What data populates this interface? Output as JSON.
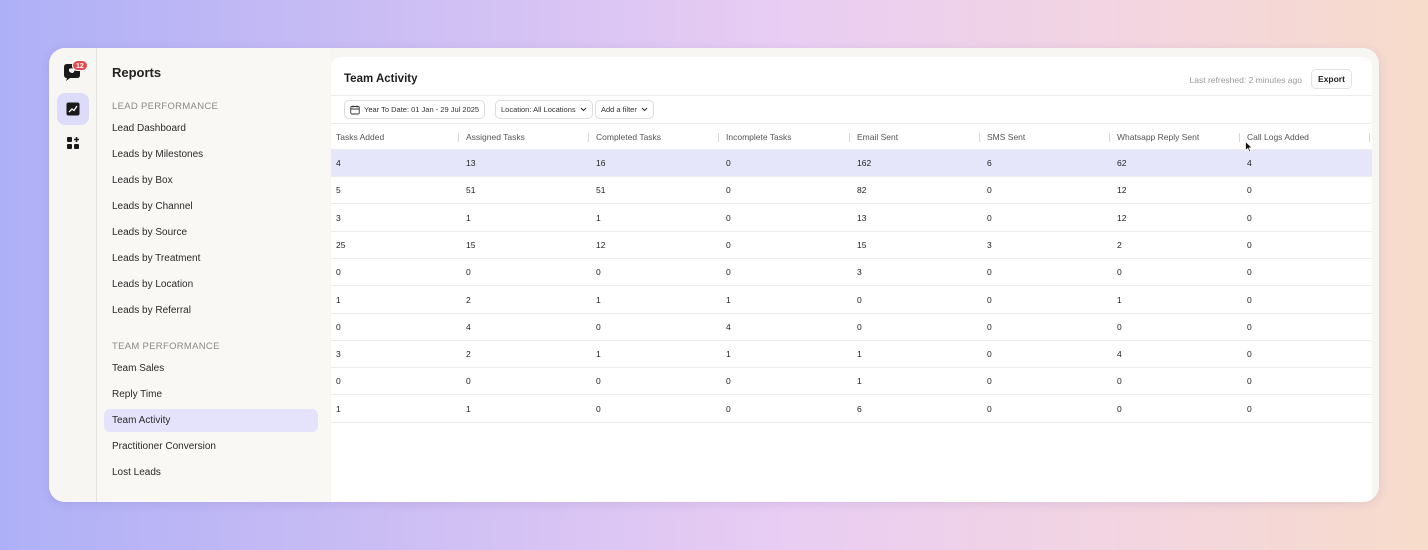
{
  "rail": {
    "badge": "12"
  },
  "sidebar": {
    "title": "Reports",
    "sections": [
      {
        "heading": "LEAD PERFORMANCE",
        "items": [
          "Lead Dashboard",
          "Leads by Milestones",
          "Leads by Box",
          "Leads by Channel",
          "Leads by Source",
          "Leads by Treatment",
          "Leads by Location",
          "Leads by Referral"
        ]
      },
      {
        "heading": "TEAM PERFORMANCE",
        "items": [
          "Team Sales",
          "Reply Time",
          "Team Activity",
          "Practitioner Conversion",
          "Lost Leads"
        ]
      }
    ],
    "active_item": "Team Activity"
  },
  "main": {
    "title": "Team Activity",
    "last_refreshed": "Last refreshed: 2 minutes ago",
    "export_label": "Export",
    "filters": {
      "date_range": "Year To Date: 01 Jan - 29 Jul 2025",
      "location": "Location: All Locations",
      "add_filter": "Add a filter"
    }
  },
  "table": {
    "columns": [
      "Tasks Added",
      "Assigned Tasks",
      "Completed Tasks",
      "Incomplete Tasks",
      "Email Sent",
      "SMS Sent",
      "Whatsapp Reply Sent",
      "Call Logs Added"
    ],
    "highlighted_row": 0,
    "rows": [
      [
        "4",
        "13",
        "16",
        "0",
        "162",
        "6",
        "62",
        "4"
      ],
      [
        "5",
        "51",
        "51",
        "0",
        "82",
        "0",
        "12",
        "0"
      ],
      [
        "3",
        "1",
        "1",
        "0",
        "13",
        "0",
        "12",
        "0"
      ],
      [
        "25",
        "15",
        "12",
        "0",
        "15",
        "3",
        "2",
        "0"
      ],
      [
        "0",
        "0",
        "0",
        "0",
        "3",
        "0",
        "0",
        "0"
      ],
      [
        "1",
        "2",
        "1",
        "1",
        "0",
        "0",
        "1",
        "0"
      ],
      [
        "0",
        "4",
        "0",
        "4",
        "0",
        "0",
        "0",
        "0"
      ],
      [
        "3",
        "2",
        "1",
        "1",
        "1",
        "0",
        "4",
        "0"
      ],
      [
        "0",
        "0",
        "0",
        "0",
        "1",
        "0",
        "0",
        "0"
      ],
      [
        "1",
        "1",
        "0",
        "0",
        "6",
        "0",
        "0",
        "0"
      ]
    ]
  },
  "colors": {
    "accent": "#e4e3fb",
    "highlight_row": "#e6e6fb",
    "badge": "#e5484d"
  }
}
